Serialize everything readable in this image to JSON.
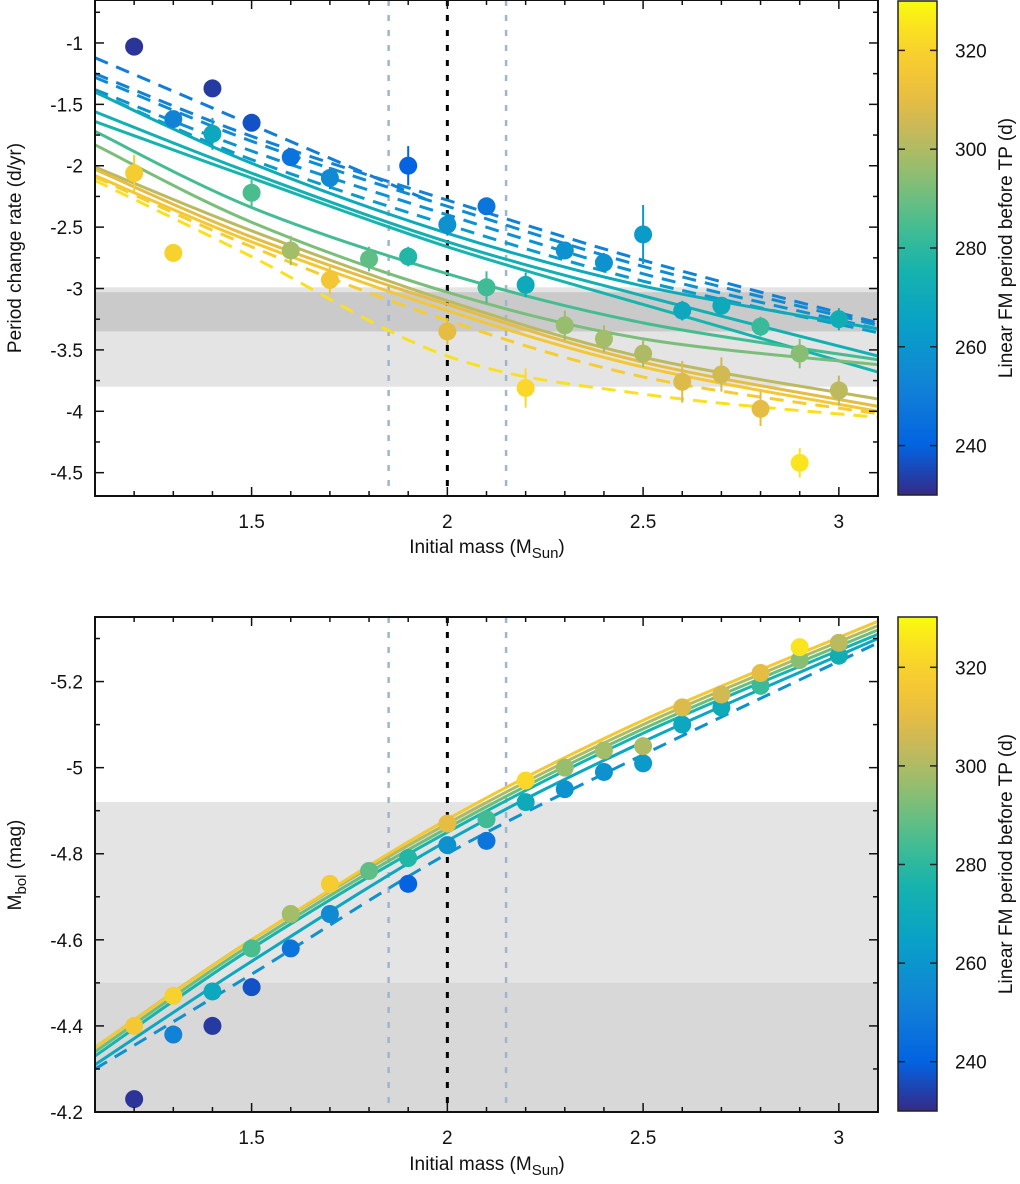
{
  "colorbar": {
    "label": "Linear FM period before TP (d)",
    "range": [
      230,
      330
    ],
    "ticks": [
      240,
      260,
      280,
      300,
      320
    ],
    "colormap": "parula"
  },
  "chart_data": [
    {
      "type": "scatter",
      "title": "",
      "xlabel": "Initial mass (M",
      "xlabel_sub": "Sun",
      "xlabel_end": ")",
      "ylabel": "Period change rate (d/yr)",
      "xlim": [
        1.1,
        3.1
      ],
      "ylim": [
        -4.69,
        -0.65
      ],
      "xticks": [
        1.5,
        2,
        2.5,
        3
      ],
      "xtick_labels": [
        "1.5",
        "2",
        "2.5",
        "3"
      ],
      "yticks": [
        -1,
        -1.5,
        -2,
        -2.5,
        -3,
        -3.5,
        -4,
        -4.5
      ],
      "ytick_labels": [
        "-1",
        "-1.5",
        "-2",
        "-2.5",
        "-3",
        "-3.5",
        "-4",
        "-4.5"
      ],
      "bands": [
        {
          "y0": -3.8,
          "y1": -2.99,
          "color": "#e4e4e4"
        },
        {
          "y0": -3.35,
          "y1": -3.03,
          "color": "#cacaca"
        }
      ],
      "vlines": [
        {
          "x": 1.85,
          "color": "#9fb5cc"
        },
        {
          "x": 2.0,
          "color": "#000000"
        },
        {
          "x": 2.15,
          "color": "#9fb5cc"
        }
      ],
      "points": [
        {
          "x": 1.2,
          "y": -1.03,
          "err": 0.07,
          "c": 232
        },
        {
          "x": 1.2,
          "y": -2.06,
          "err": 0.15,
          "c": 318
        },
        {
          "x": 1.3,
          "y": -1.62,
          "err": 0.06,
          "c": 252
        },
        {
          "x": 1.3,
          "y": -2.71,
          "err": 0.06,
          "c": 320
        },
        {
          "x": 1.4,
          "y": -1.37,
          "err": 0.07,
          "c": 233
        },
        {
          "x": 1.4,
          "y": -1.74,
          "err": 0.13,
          "c": 268
        },
        {
          "x": 1.5,
          "y": -1.65,
          "err": 0.05,
          "c": 237
        },
        {
          "x": 1.5,
          "y": -2.22,
          "err": 0.12,
          "c": 285
        },
        {
          "x": 1.6,
          "y": -1.93,
          "err": 0.07,
          "c": 246
        },
        {
          "x": 1.6,
          "y": -2.69,
          "err": 0.12,
          "c": 298
        },
        {
          "x": 1.7,
          "y": -2.1,
          "err": 0.09,
          "c": 255
        },
        {
          "x": 1.7,
          "y": -2.93,
          "err": 0.12,
          "c": 315
        },
        {
          "x": 1.8,
          "y": -2.76,
          "err": 0.1,
          "c": 288
        },
        {
          "x": 1.9,
          "y": -2.0,
          "err": 0.16,
          "c": 240
        },
        {
          "x": 1.9,
          "y": -2.74,
          "err": 0.08,
          "c": 278
        },
        {
          "x": 2.0,
          "y": -2.48,
          "err": 0.09,
          "c": 258
        },
        {
          "x": 2.0,
          "y": -3.35,
          "err": 0.11,
          "c": 310
        },
        {
          "x": 2.1,
          "y": -2.33,
          "err": 0.06,
          "c": 247
        },
        {
          "x": 2.1,
          "y": -2.99,
          "err": 0.13,
          "c": 283
        },
        {
          "x": 2.2,
          "y": -2.97,
          "err": 0.1,
          "c": 270
        },
        {
          "x": 2.2,
          "y": -3.81,
          "err": 0.16,
          "c": 322
        },
        {
          "x": 2.3,
          "y": -2.69,
          "err": 0.06,
          "c": 258
        },
        {
          "x": 2.3,
          "y": -3.3,
          "err": 0.12,
          "c": 296
        },
        {
          "x": 2.4,
          "y": -2.79,
          "err": 0.08,
          "c": 258
        },
        {
          "x": 2.4,
          "y": -3.41,
          "err": 0.11,
          "c": 298
        },
        {
          "x": 2.5,
          "y": -2.56,
          "err": 0.24,
          "c": 262
        },
        {
          "x": 2.5,
          "y": -3.53,
          "err": 0.11,
          "c": 300
        },
        {
          "x": 2.6,
          "y": -3.18,
          "err": 0.08,
          "c": 268
        },
        {
          "x": 2.6,
          "y": -3.76,
          "err": 0.17,
          "c": 308
        },
        {
          "x": 2.7,
          "y": -3.14,
          "err": 0.07,
          "c": 270
        },
        {
          "x": 2.7,
          "y": -3.7,
          "err": 0.14,
          "c": 306
        },
        {
          "x": 2.8,
          "y": -3.31,
          "err": 0.08,
          "c": 282
        },
        {
          "x": 2.8,
          "y": -3.98,
          "err": 0.14,
          "c": 310
        },
        {
          "x": 2.9,
          "y": -3.53,
          "err": 0.12,
          "c": 294
        },
        {
          "x": 2.9,
          "y": -4.42,
          "err": 0.12,
          "c": 325
        },
        {
          "x": 3.0,
          "y": -3.25,
          "err": 0.09,
          "c": 272
        },
        {
          "x": 3.0,
          "y": -3.83,
          "err": 0.12,
          "c": 302
        }
      ],
      "curves": [
        {
          "style": "dashed",
          "c": 250,
          "x": [
            1.1,
            1.95
          ],
          "y": [
            -1.12,
            -2.28
          ]
        },
        {
          "style": "dashed",
          "c": 252,
          "x": [
            1.1,
            1.5,
            2.0,
            2.5,
            3.1
          ],
          "y": [
            -1.25,
            -1.76,
            -2.28,
            -2.77,
            -3.28
          ]
        },
        {
          "style": "dashed",
          "c": 256,
          "x": [
            1.1,
            1.5,
            2.0,
            2.5,
            3.1
          ],
          "y": [
            -1.28,
            -1.8,
            -2.33,
            -2.82,
            -3.3
          ]
        },
        {
          "style": "dashed",
          "c": 258,
          "x": [
            1.1,
            1.5,
            2.0,
            2.5,
            3.1
          ],
          "y": [
            -1.38,
            -1.88,
            -2.4,
            -2.88,
            -3.33
          ]
        },
        {
          "style": "dashed",
          "c": 262,
          "x": [
            1.1,
            1.5,
            2.0,
            2.5,
            3.1
          ],
          "y": [
            -1.4,
            -1.95,
            -2.48,
            -2.94,
            -3.36
          ]
        },
        {
          "style": "solid",
          "c": 270,
          "x": [
            1.1,
            1.5,
            2.0,
            2.5,
            3.1
          ],
          "y": [
            -1.4,
            -1.98,
            -2.55,
            -2.98,
            -3.33
          ]
        },
        {
          "style": "solid",
          "c": 273,
          "x": [
            1.1,
            1.5,
            2.0,
            2.5,
            3.1
          ],
          "y": [
            -1.56,
            -2.06,
            -2.62,
            -3.06,
            -3.55
          ]
        },
        {
          "style": "solid",
          "c": 276,
          "x": [
            1.1,
            1.5,
            2.0,
            2.5,
            3.1
          ],
          "y": [
            -1.64,
            -2.1,
            -2.66,
            -3.13,
            -3.68
          ]
        },
        {
          "style": "solid",
          "c": 284,
          "x": [
            1.1,
            1.5,
            2.0,
            2.5,
            3.1
          ],
          "y": [
            -1.72,
            -2.34,
            -2.88,
            -3.28,
            -3.58
          ]
        },
        {
          "style": "solid",
          "c": 292,
          "x": [
            1.1,
            1.5,
            2.0,
            2.5,
            3.1
          ],
          "y": [
            -1.83,
            -2.46,
            -3.03,
            -3.41,
            -3.62
          ]
        },
        {
          "style": "solid",
          "c": 302,
          "x": [
            1.1,
            1.5,
            2.0,
            2.5,
            3.1
          ],
          "y": [
            -2.01,
            -2.53,
            -3.1,
            -3.56,
            -3.9
          ]
        },
        {
          "style": "solid",
          "c": 310,
          "x": [
            1.1,
            1.5,
            2.0,
            2.5,
            3.1
          ],
          "y": [
            -2.03,
            -2.58,
            -3.13,
            -3.6,
            -3.96
          ]
        },
        {
          "style": "solid",
          "c": 316,
          "x": [
            1.1,
            1.5,
            2.0,
            2.5,
            3.1
          ],
          "y": [
            -2.08,
            -2.62,
            -3.18,
            -3.64,
            -4.0
          ]
        },
        {
          "style": "dashed",
          "c": 318,
          "x": [
            1.1,
            1.5,
            2.0,
            2.5,
            3.1
          ],
          "y": [
            -2.09,
            -2.66,
            -3.26,
            -3.72,
            -4.02
          ]
        },
        {
          "style": "dashed",
          "c": 324,
          "x": [
            1.1,
            1.5,
            2.0,
            2.5,
            3.1
          ],
          "y": [
            -2.12,
            -2.74,
            -3.55,
            -3.86,
            -4.05
          ]
        }
      ]
    },
    {
      "type": "scatter",
      "title": "",
      "xlabel": "Initial mass (M",
      "xlabel_sub": "Sun",
      "xlabel_end": ")",
      "ylabel": "M",
      "ylabel_sub": "bol",
      "ylabel_end": " (mag)",
      "xlim": [
        1.1,
        3.1
      ],
      "ylim": [
        -4.2,
        -5.35
      ],
      "xticks": [
        1.5,
        2,
        2.5,
        3
      ],
      "xtick_labels": [
        "1.5",
        "2",
        "2.5",
        "3"
      ],
      "yticks": [
        -5.2,
        -5,
        -4.8,
        -4.6,
        -4.4,
        -4.2
      ],
      "ytick_labels": [
        "-5.2",
        "-5",
        "-4.8",
        "-4.6",
        "-4.4",
        "-4.2"
      ],
      "bands": [
        {
          "y0": -4.2,
          "y1": -4.92,
          "color": "#e4e4e4"
        },
        {
          "y0": -4.2,
          "y1": -4.5,
          "color": "#d8d8d8"
        }
      ],
      "vlines": [
        {
          "x": 1.85,
          "color": "#9fb5cc"
        },
        {
          "x": 2.0,
          "color": "#000000"
        },
        {
          "x": 2.15,
          "color": "#9fb5cc"
        }
      ],
      "points": [
        {
          "x": 1.2,
          "y": -4.23,
          "c": 232
        },
        {
          "x": 1.2,
          "y": -4.4,
          "c": 316
        },
        {
          "x": 1.3,
          "y": -4.38,
          "c": 252
        },
        {
          "x": 1.3,
          "y": -4.47,
          "c": 320
        },
        {
          "x": 1.4,
          "y": -4.4,
          "c": 233
        },
        {
          "x": 1.4,
          "y": -4.48,
          "c": 268
        },
        {
          "x": 1.5,
          "y": -4.49,
          "c": 237
        },
        {
          "x": 1.5,
          "y": -4.58,
          "c": 285
        },
        {
          "x": 1.6,
          "y": -4.58,
          "c": 246
        },
        {
          "x": 1.6,
          "y": -4.66,
          "c": 298
        },
        {
          "x": 1.7,
          "y": -4.66,
          "c": 255
        },
        {
          "x": 1.7,
          "y": -4.73,
          "c": 318
        },
        {
          "x": 1.8,
          "y": -4.76,
          "c": 288
        },
        {
          "x": 1.9,
          "y": -4.73,
          "c": 240
        },
        {
          "x": 1.9,
          "y": -4.79,
          "c": 278
        },
        {
          "x": 2.0,
          "y": -4.82,
          "c": 258
        },
        {
          "x": 2.0,
          "y": -4.87,
          "c": 310
        },
        {
          "x": 2.1,
          "y": -4.83,
          "c": 247
        },
        {
          "x": 2.1,
          "y": -4.88,
          "c": 283
        },
        {
          "x": 2.2,
          "y": -4.92,
          "c": 270
        },
        {
          "x": 2.2,
          "y": -4.97,
          "c": 322
        },
        {
          "x": 2.3,
          "y": -4.95,
          "c": 258
        },
        {
          "x": 2.3,
          "y": -5.0,
          "c": 296
        },
        {
          "x": 2.4,
          "y": -4.99,
          "c": 258
        },
        {
          "x": 2.4,
          "y": -5.04,
          "c": 298
        },
        {
          "x": 2.5,
          "y": -5.01,
          "c": 262
        },
        {
          "x": 2.5,
          "y": -5.05,
          "c": 300
        },
        {
          "x": 2.6,
          "y": -5.1,
          "c": 268
        },
        {
          "x": 2.6,
          "y": -5.14,
          "c": 308
        },
        {
          "x": 2.7,
          "y": -5.14,
          "c": 270
        },
        {
          "x": 2.7,
          "y": -5.17,
          "c": 306
        },
        {
          "x": 2.8,
          "y": -5.19,
          "c": 282
        },
        {
          "x": 2.8,
          "y": -5.22,
          "c": 310
        },
        {
          "x": 2.9,
          "y": -5.25,
          "c": 294
        },
        {
          "x": 2.9,
          "y": -5.28,
          "c": 325
        },
        {
          "x": 3.0,
          "y": -5.26,
          "c": 272
        },
        {
          "x": 3.0,
          "y": -5.29,
          "c": 302
        }
      ],
      "curves": [
        {
          "style": "dashed",
          "c": 258,
          "x": [
            1.1,
            1.5,
            2.0,
            2.5,
            3.1
          ],
          "y": [
            -4.3,
            -4.52,
            -4.8,
            -5.03,
            -5.29
          ]
        },
        {
          "style": "solid",
          "c": 268,
          "x": [
            1.1,
            1.5,
            2.0,
            2.5,
            3.1
          ],
          "y": [
            -4.31,
            -4.55,
            -4.83,
            -5.06,
            -5.3
          ]
        },
        {
          "style": "solid",
          "c": 276,
          "x": [
            1.1,
            1.5,
            2.0,
            2.5,
            3.1
          ],
          "y": [
            -4.33,
            -4.58,
            -4.85,
            -5.08,
            -5.31
          ]
        },
        {
          "style": "solid",
          "c": 290,
          "x": [
            1.1,
            1.5,
            2.0,
            2.5,
            3.1
          ],
          "y": [
            -4.34,
            -4.59,
            -4.86,
            -5.09,
            -5.32
          ]
        },
        {
          "style": "solid",
          "c": 300,
          "x": [
            1.1,
            1.5,
            2.0,
            2.5,
            3.1
          ],
          "y": [
            -4.35,
            -4.6,
            -4.87,
            -5.1,
            -5.33
          ]
        },
        {
          "style": "solid",
          "c": 316,
          "x": [
            1.1,
            1.5,
            2.0,
            2.5,
            3.1
          ],
          "y": [
            -4.35,
            -4.6,
            -4.88,
            -5.11,
            -5.34
          ]
        }
      ]
    }
  ]
}
